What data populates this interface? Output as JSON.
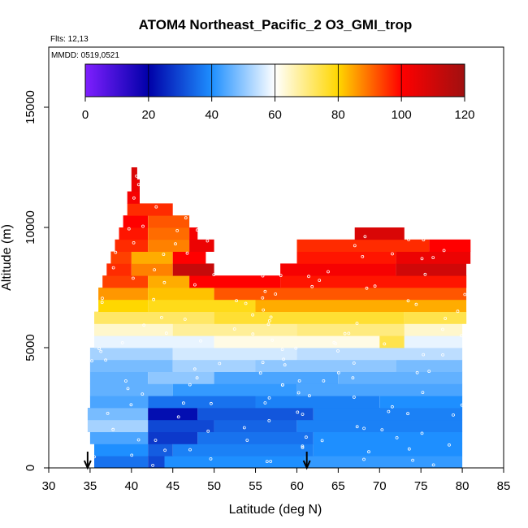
{
  "chart_data": {
    "type": "heatmap",
    "title": "ATOM4 Northeast_Pacific_2 O3_GMI_trop",
    "flights_text": "Flts: 12,13",
    "dates_text": "MMDD: 0519,0521",
    "xlabel": "Latitude (deg N)",
    "ylabel": "Altitude (m)",
    "xlim": [
      30,
      85
    ],
    "ylim": [
      0,
      17500
    ],
    "x_ticks": [
      "30",
      "35",
      "40",
      "45",
      "50",
      "55",
      "60",
      "65",
      "70",
      "75",
      "80",
      "85"
    ],
    "y_ticks": [
      "0",
      "5000",
      "10000",
      "15000"
    ],
    "colorbar": {
      "range": [
        0,
        120
      ],
      "ticks": [
        "0",
        "20",
        "40",
        "60",
        "80",
        "100",
        "120"
      ],
      "stops": [
        "#7f1fff",
        "#0000a8",
        "#1e8fff",
        "#ffffff",
        "#ffd700",
        "#ff0000",
        "#a01010"
      ]
    },
    "arrows_latitude": [
      34.7,
      61.2
    ],
    "field": {
      "rows": [
        {
          "alt": [
            0,
            500
          ],
          "segs": [
            [
              35.5,
              42,
              36
            ],
            [
              42,
              44,
              30
            ],
            [
              44,
              61,
              40
            ],
            [
              61,
              80,
              42
            ]
          ]
        },
        {
          "alt": [
            500,
            1000
          ],
          "segs": [
            [
              35.5,
              42,
              40
            ],
            [
              42,
              45,
              33
            ],
            [
              45,
              62,
              38
            ],
            [
              62,
              80,
              40
            ]
          ]
        },
        {
          "alt": [
            1000,
            1500
          ],
          "segs": [
            [
              35,
              42,
              44
            ],
            [
              42,
              48,
              28
            ],
            [
              48,
              62,
              36
            ],
            [
              62,
              80,
              40
            ]
          ]
        },
        {
          "alt": [
            1500,
            2000
          ],
          "segs": [
            [
              34.7,
              42,
              52
            ],
            [
              42,
              50,
              30
            ],
            [
              50,
              60,
              34
            ],
            [
              60,
              80,
              38
            ]
          ]
        },
        {
          "alt": [
            2000,
            2500
          ],
          "segs": [
            [
              34.7,
              42,
              48
            ],
            [
              42,
              48,
              22
            ],
            [
              48,
              62,
              32
            ],
            [
              62,
              80,
              38
            ]
          ]
        },
        {
          "alt": [
            2500,
            3000
          ],
          "segs": [
            [
              35,
              42,
              44
            ],
            [
              42,
              55,
              36
            ],
            [
              55,
              70,
              38
            ],
            [
              70,
              80,
              40
            ]
          ]
        },
        {
          "alt": [
            3000,
            3500
          ],
          "segs": [
            [
              35,
              45,
              46
            ],
            [
              45,
              60,
              42
            ],
            [
              60,
              80,
              44
            ]
          ]
        },
        {
          "alt": [
            3500,
            4000
          ],
          "segs": [
            [
              35,
              42,
              46
            ],
            [
              42,
              50,
              50
            ],
            [
              50,
              65,
              44
            ],
            [
              65,
              80,
              46
            ]
          ]
        },
        {
          "alt": [
            4000,
            4500
          ],
          "segs": [
            [
              35,
              45,
              48
            ],
            [
              45,
              55,
              52
            ],
            [
              55,
              72,
              50
            ],
            [
              72,
              80,
              48
            ]
          ]
        },
        {
          "alt": [
            4500,
            5000
          ],
          "segs": [
            [
              35,
              45,
              52
            ],
            [
              45,
              60,
              56
            ],
            [
              60,
              80,
              54
            ]
          ]
        },
        {
          "alt": [
            5000,
            5500
          ],
          "segs": [
            [
              35.5,
              50,
              58
            ],
            [
              50,
              70,
              62
            ],
            [
              70,
              73,
              74
            ],
            [
              73,
              80,
              58
            ]
          ]
        },
        {
          "alt": [
            5500,
            6000
          ],
          "segs": [
            [
              35.5,
              45,
              64
            ],
            [
              45,
              60,
              68
            ],
            [
              60,
              73,
              70
            ],
            [
              73,
              80,
              64
            ]
          ]
        },
        {
          "alt": [
            6000,
            6500
          ],
          "segs": [
            [
              35.5,
              50,
              72
            ],
            [
              50,
              73,
              76
            ],
            [
              73,
              80.5,
              74
            ]
          ]
        },
        {
          "alt": [
            6500,
            7000
          ],
          "segs": [
            [
              36,
              42,
              80
            ],
            [
              42,
              55,
              78
            ],
            [
              55,
              80.5,
              84
            ]
          ]
        },
        {
          "alt": [
            7000,
            7500
          ],
          "segs": [
            [
              36,
              42,
              86
            ],
            [
              42,
              50,
              82
            ],
            [
              50,
              80.5,
              92
            ]
          ]
        },
        {
          "alt": [
            7500,
            8000
          ],
          "segs": [
            [
              36.5,
              42,
              94
            ],
            [
              42,
              47,
              84
            ],
            [
              47,
              58,
              100
            ],
            [
              58,
              80.5,
              98
            ]
          ]
        },
        {
          "alt": [
            8000,
            8500
          ],
          "segs": [
            [
              37,
              40,
              96
            ],
            [
              40,
              45,
              88
            ],
            [
              45,
              50,
              112
            ],
            [
              58,
              72,
              102
            ],
            [
              72,
              80.5,
              110
            ]
          ]
        },
        {
          "alt": [
            8500,
            9000
          ],
          "segs": [
            [
              37.5,
              40,
              94
            ],
            [
              40,
              45,
              84
            ],
            [
              45,
              49,
              100
            ],
            [
              60,
              72,
              98
            ],
            [
              72,
              81,
              104
            ]
          ]
        },
        {
          "alt": [
            9000,
            9500
          ],
          "segs": [
            [
              38,
              42,
              96
            ],
            [
              42,
              47,
              88
            ],
            [
              47,
              50,
              104
            ],
            [
              60,
              76,
              96
            ],
            [
              76,
              81,
              100
            ]
          ]
        },
        {
          "alt": [
            9500,
            10000
          ],
          "segs": [
            [
              38.5,
              42,
              98
            ],
            [
              42,
              47,
              90
            ],
            [
              47,
              48,
              102
            ],
            [
              67,
              73,
              108
            ]
          ]
        },
        {
          "alt": [
            10000,
            10500
          ],
          "segs": [
            [
              39,
              42,
              100
            ],
            [
              42,
              47,
              92
            ]
          ]
        },
        {
          "alt": [
            10500,
            11000
          ],
          "segs": [
            [
              39.5,
              45,
              96
            ]
          ]
        },
        {
          "alt": [
            11000,
            11500
          ],
          "segs": [
            [
              39.5,
              41,
              102
            ]
          ]
        },
        {
          "alt": [
            11500,
            12000
          ],
          "segs": [
            [
              40,
              41,
              104
            ]
          ]
        },
        {
          "alt": [
            12000,
            12500
          ],
          "segs": [
            [
              40,
              40.7,
              108
            ]
          ]
        }
      ]
    }
  }
}
